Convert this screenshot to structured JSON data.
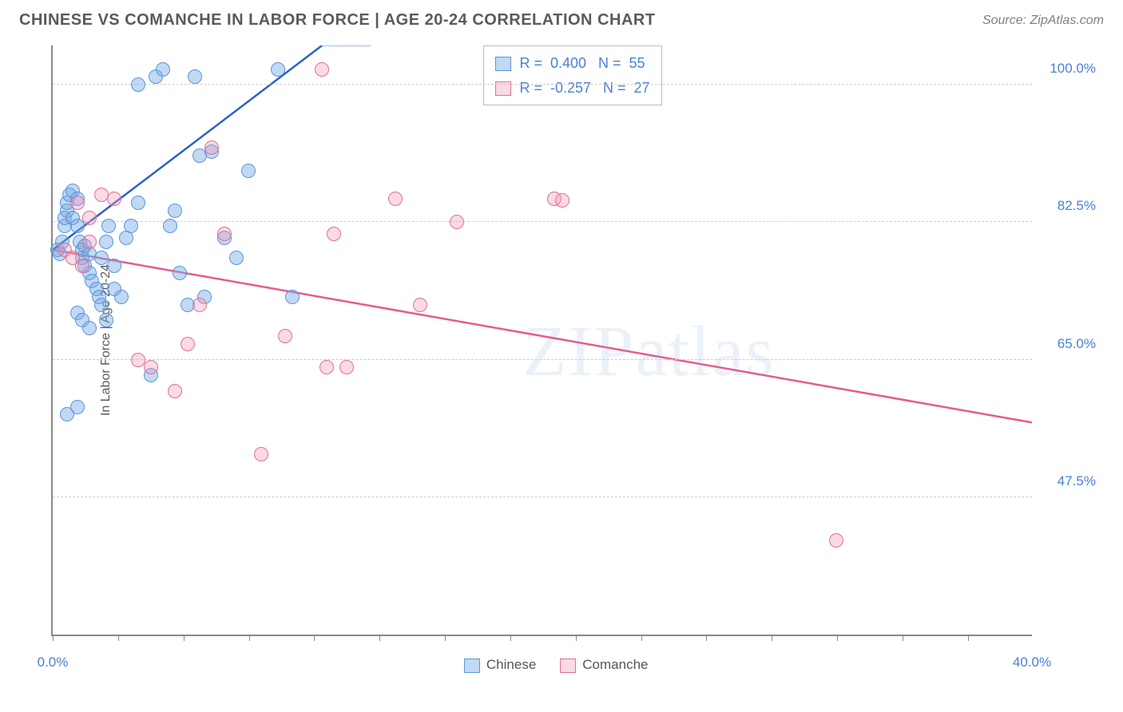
{
  "header": {
    "title": "CHINESE VS COMANCHE IN LABOR FORCE | AGE 20-24 CORRELATION CHART",
    "source": "Source: ZipAtlas.com"
  },
  "chart": {
    "type": "scatter",
    "ylabel": "In Labor Force | Age 20-24",
    "xlim": [
      0,
      40
    ],
    "ylim": [
      30,
      105
    ],
    "yticks": [
      {
        "value": 47.5,
        "label": "47.5%"
      },
      {
        "value": 65.0,
        "label": "65.0%"
      },
      {
        "value": 82.5,
        "label": "82.5%"
      },
      {
        "value": 100.0,
        "label": "100.0%"
      }
    ],
    "xtick_major": [
      {
        "value": 0,
        "label": "0.0%"
      },
      {
        "value": 40,
        "label": "40.0%"
      }
    ],
    "xtick_minor_step": 2.67,
    "grid_color": "#cccccc",
    "axis_color": "#888888",
    "background_color": "#ffffff",
    "watermark": "ZIPatlas",
    "series": [
      {
        "name": "Chinese",
        "color_fill": "rgba(120,170,230,0.45)",
        "color_stroke": "#5a95d8",
        "trend_color": "#2a62c8",
        "marker_radius": 9,
        "R": "0.400",
        "N": "55",
        "trend": {
          "x1": 0,
          "y1": 79,
          "x2": 11,
          "y2": 105,
          "dash_x2": 13,
          "dash_y2": 110
        },
        "points": [
          [
            0.2,
            79
          ],
          [
            0.3,
            78.5
          ],
          [
            0.4,
            80
          ],
          [
            0.5,
            82
          ],
          [
            0.5,
            83
          ],
          [
            0.6,
            84
          ],
          [
            0.6,
            85
          ],
          [
            0.7,
            86
          ],
          [
            0.8,
            86.5
          ],
          [
            0.8,
            83
          ],
          [
            1.0,
            85.5
          ],
          [
            1.0,
            82
          ],
          [
            1.1,
            80
          ],
          [
            1.2,
            78
          ],
          [
            1.2,
            79
          ],
          [
            1.3,
            79.5
          ],
          [
            1.3,
            77
          ],
          [
            1.5,
            78.5
          ],
          [
            1.5,
            76
          ],
          [
            1.6,
            75
          ],
          [
            1.8,
            74
          ],
          [
            1.9,
            73
          ],
          [
            2.0,
            72
          ],
          [
            2.0,
            78
          ],
          [
            2.2,
            80
          ],
          [
            2.3,
            82
          ],
          [
            2.5,
            77
          ],
          [
            2.5,
            74
          ],
          [
            2.8,
            73
          ],
          [
            3.0,
            80.5
          ],
          [
            3.2,
            82
          ],
          [
            3.5,
            85
          ],
          [
            3.5,
            100
          ],
          [
            4.0,
            63
          ],
          [
            4.2,
            101
          ],
          [
            4.5,
            102
          ],
          [
            4.8,
            82
          ],
          [
            5.0,
            84
          ],
          [
            5.2,
            76
          ],
          [
            5.5,
            72
          ],
          [
            5.8,
            101
          ],
          [
            6.0,
            91
          ],
          [
            6.2,
            73
          ],
          [
            6.5,
            91.5
          ],
          [
            7.0,
            80.5
          ],
          [
            7.5,
            78
          ],
          [
            8.0,
            89
          ],
          [
            9.2,
            102
          ],
          [
            9.8,
            73
          ],
          [
            1.0,
            71
          ],
          [
            1.2,
            70
          ],
          [
            1.5,
            69
          ],
          [
            2.2,
            70
          ],
          [
            1.0,
            59
          ],
          [
            0.6,
            58
          ]
        ]
      },
      {
        "name": "Comanche",
        "color_fill": "rgba(240,150,180,0.35)",
        "color_stroke": "#e07090",
        "trend_color": "#e85a8c",
        "marker_radius": 9,
        "R": "-0.257",
        "N": "27",
        "trend": {
          "x1": 0,
          "y1": 79,
          "x2": 40,
          "y2": 57
        },
        "points": [
          [
            0.5,
            79
          ],
          [
            0.8,
            78
          ],
          [
            1.0,
            85
          ],
          [
            1.2,
            77
          ],
          [
            1.5,
            80
          ],
          [
            1.5,
            83
          ],
          [
            2.0,
            86
          ],
          [
            2.5,
            85.5
          ],
          [
            3.5,
            65
          ],
          [
            4.0,
            64
          ],
          [
            5.0,
            61
          ],
          [
            5.5,
            67
          ],
          [
            6.0,
            72
          ],
          [
            6.5,
            92
          ],
          [
            7.0,
            81
          ],
          [
            8.5,
            53
          ],
          [
            9.5,
            68
          ],
          [
            11.0,
            102
          ],
          [
            11.2,
            64
          ],
          [
            11.5,
            81
          ],
          [
            12.0,
            64
          ],
          [
            14.0,
            85.5
          ],
          [
            15.0,
            72
          ],
          [
            16.5,
            82.5
          ],
          [
            20.5,
            85.5
          ],
          [
            20.8,
            85.3
          ],
          [
            32.0,
            42
          ]
        ]
      }
    ],
    "legend_top_label": {
      "r_prefix": "R = ",
      "n_prefix": "N = "
    },
    "legend_bottom": [
      "Chinese",
      "Comanche"
    ]
  }
}
